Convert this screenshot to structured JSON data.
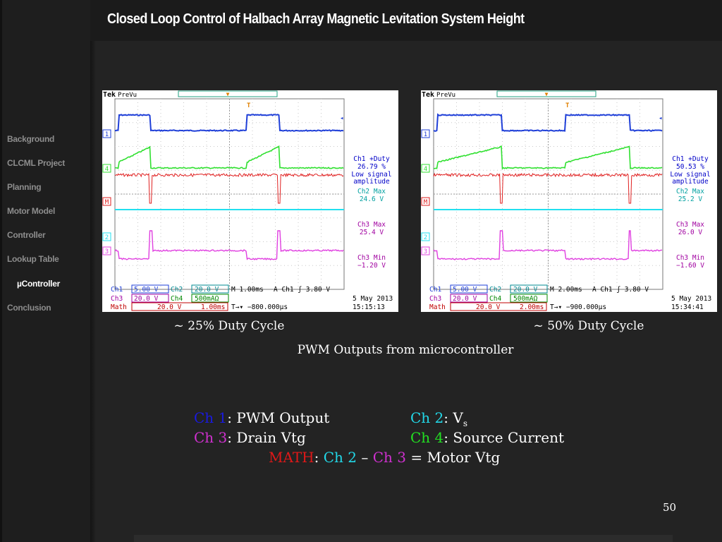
{
  "slide": {
    "title": "Closed Loop Control of Halbach Array Magnetic Levitation System Height",
    "page_number": "50",
    "caption_main": "PWM Outputs from microcontroller"
  },
  "sidebar": {
    "items": [
      {
        "label": "Background",
        "active": false
      },
      {
        "label": "CLCML Project",
        "active": false
      },
      {
        "label": "Planning",
        "active": false
      },
      {
        "label": "Motor Model",
        "active": false
      },
      {
        "label": "Controller",
        "active": false
      },
      {
        "label": "Lookup Table",
        "active": false
      },
      {
        "label": "µController",
        "active": true
      },
      {
        "label": "Conclusion",
        "active": false
      }
    ]
  },
  "scopes": [
    {
      "caption": "~ 25% Duty Cycle",
      "brand": "Tek",
      "mode": "PreVu",
      "duty": 0.25,
      "measurements": [
        {
          "label": "Ch1 +Duty",
          "value": "26.79 %",
          "color": "#0000c8"
        },
        {
          "label": "Low signal",
          "value": "amplitude",
          "color": "#0000c8"
        },
        {
          "label": "Ch2 Max",
          "value": "24.6 V",
          "color": "#00a0a0"
        },
        {
          "label": "Ch3 Max",
          "value": "25.4 V",
          "color": "#a000a0"
        },
        {
          "label": "Ch3 Min",
          "value": "−1.20 V",
          "color": "#a000a0"
        }
      ],
      "status": {
        "ch1_label": "Ch1",
        "ch1_scale": "5.00 V",
        "ch2_label": "Ch2",
        "ch2_scale": "20.0 V",
        "ch3_label": "Ch3",
        "ch3_scale": "20.0 V",
        "ch4_label": "Ch4",
        "ch4_scale": "500mAΩ",
        "math_label": "Math",
        "math_scale": "20.0 V",
        "math_time": "1.00ms",
        "timebase": "M 1.00ms",
        "trigger": "A  Ch1 ʃ  3.80 V",
        "position": "T→▾  −800.000µs",
        "date": "5 May 2013",
        "time": "15:15:13"
      }
    },
    {
      "caption": "~ 50% Duty Cycle",
      "brand": "Tek",
      "mode": "PreVu",
      "duty": 0.5,
      "measurements": [
        {
          "label": "Ch1 +Duty",
          "value": "50.53 %",
          "color": "#0000c8"
        },
        {
          "label": "Low signal",
          "value": "amplitude",
          "color": "#0000c8"
        },
        {
          "label": "Ch2 Max",
          "value": "25.2 V",
          "color": "#00a0a0"
        },
        {
          "label": "Ch3 Max",
          "value": "26.0 V",
          "color": "#a000a0"
        },
        {
          "label": "Ch3 Min",
          "value": "−1.60 V",
          "color": "#a000a0"
        }
      ],
      "status": {
        "ch1_label": "Ch1",
        "ch1_scale": "5.00 V",
        "ch2_label": "Ch2",
        "ch2_scale": "20.0 V",
        "ch3_label": "Ch3",
        "ch3_scale": "20.0 V",
        "ch4_label": "Ch4",
        "ch4_scale": "500mAΩ",
        "math_label": "Math",
        "math_scale": "20.0 V",
        "math_time": "2.00ms",
        "timebase": "M 2.00ms",
        "trigger": "A  Ch1 ʃ  3.80 V",
        "position": "T→▾  −900.000µs",
        "date": "5 May 2013",
        "time": "15:34:41"
      }
    }
  ],
  "channel_colors": {
    "ch1": "#1f3fd8",
    "ch2": "#22e0f0",
    "ch3": "#e040e0",
    "ch4": "#30e030",
    "math": "#e02020"
  },
  "legend": {
    "ch1_label": "Ch 1",
    "ch1_desc": ": PWM Output",
    "ch2_label": "Ch 2",
    "ch2_desc": ": V",
    "ch2_sub": "s",
    "ch3_label": "Ch 3",
    "ch3_desc": ": Drain Vtg",
    "ch4_label": "Ch 4",
    "ch4_desc": ": Source Current",
    "math_label": "MATH",
    "math_sep": ": ",
    "math_a": "Ch 2",
    "math_minus": " – ",
    "math_b": "Ch 3",
    "math_result": " = Motor Vtg"
  }
}
